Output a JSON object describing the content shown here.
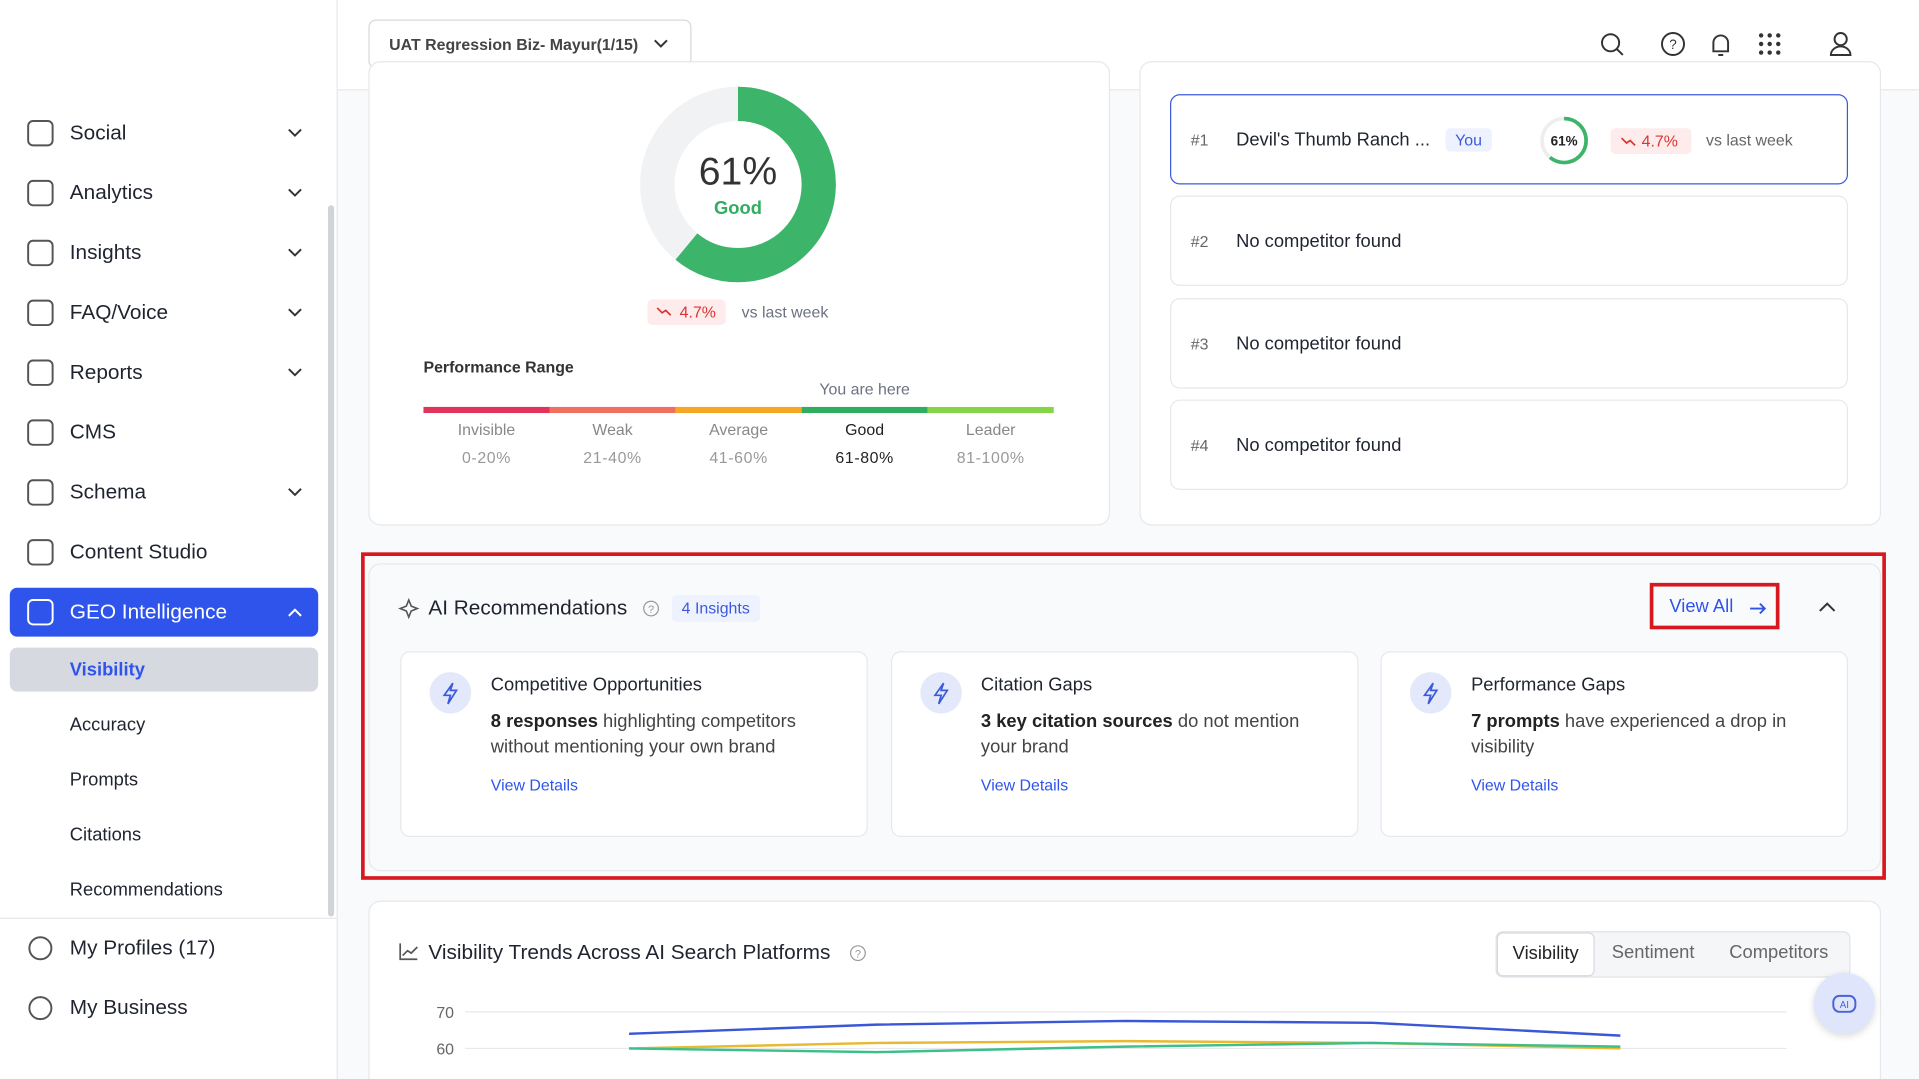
{
  "header": {
    "workspace": "UAT Regression Biz- Mayur(1/15)"
  },
  "sidebar": {
    "items": [
      {
        "label": "Social",
        "expandable": true
      },
      {
        "label": "Analytics",
        "expandable": true
      },
      {
        "label": "Insights",
        "expandable": true
      },
      {
        "label": "FAQ/Voice",
        "expandable": true
      },
      {
        "label": "Reports",
        "expandable": true
      },
      {
        "label": "CMS",
        "expandable": false
      },
      {
        "label": "Schema",
        "expandable": true
      },
      {
        "label": "Content Studio",
        "expandable": false
      },
      {
        "label": "GEO Intelligence",
        "expandable": true,
        "active": true
      }
    ],
    "subitems": [
      "Visibility",
      "Accuracy",
      "Prompts",
      "Citations",
      "Recommendations"
    ],
    "footer": [
      "My Profiles (17)",
      "My Business"
    ]
  },
  "score": {
    "value": 61,
    "label": "61%",
    "rating": "Good",
    "change": "4.7%",
    "change_note": "vs last week",
    "range_title": "Performance Range",
    "marker": "You are here",
    "ranges": [
      {
        "name": "Invisible",
        "span": "0-20%",
        "color": "#e0345a"
      },
      {
        "name": "Weak",
        "span": "21-40%",
        "color": "#ef705e"
      },
      {
        "name": "Average",
        "span": "41-60%",
        "color": "#f5a623"
      },
      {
        "name": "Good",
        "span": "61-80%",
        "color": "#2fae5f",
        "current": true
      },
      {
        "name": "Leader",
        "span": "81-100%",
        "color": "#86d44a"
      }
    ]
  },
  "competitors": [
    {
      "rank": "#1",
      "name": "Devil's Thumb Ranch ...",
      "tag": "You",
      "score": 61,
      "score_label": "61%",
      "change": "4.7%",
      "change_note": "vs last week"
    },
    {
      "rank": "#2",
      "name": "No competitor found"
    },
    {
      "rank": "#3",
      "name": "No competitor found"
    },
    {
      "rank": "#4",
      "name": "No competitor found"
    }
  ],
  "recommendations": {
    "title": "AI Recommendations",
    "badge": "4 Insights",
    "view_all": "View All",
    "cards": [
      {
        "title": "Competitive Opportunities",
        "highlight": "8 responses",
        "text": " highlighting competitors without mentioning your own brand",
        "link": "View Details"
      },
      {
        "title": "Citation Gaps",
        "highlight": "3 key citation sources",
        "text": " do not mention your brand",
        "link": "View Details"
      },
      {
        "title": "Performance Gaps",
        "highlight": "7 prompts",
        "text": " have experienced a drop in visibility",
        "link": "View Details"
      }
    ]
  },
  "trends": {
    "title": "Visibility Trends Across AI Search Platforms",
    "tabs": [
      "Visibility",
      "Sentiment",
      "Competitors"
    ],
    "chart_data": {
      "type": "line",
      "categories": [
        null,
        null,
        null,
        null,
        null
      ],
      "ylim": [
        50,
        70
      ],
      "yticks": [
        60,
        70
      ],
      "grid": true,
      "series": [
        {
          "color": "#3a57d6",
          "values": [
            64,
            66.5,
            67.5,
            67,
            63.5
          ]
        },
        {
          "color": "#e8b931",
          "values": [
            60,
            61.5,
            62,
            61.5,
            60
          ]
        },
        {
          "color": "#3dbf8a",
          "values": [
            60,
            59,
            60.5,
            61.5,
            60.5
          ]
        }
      ]
    }
  }
}
